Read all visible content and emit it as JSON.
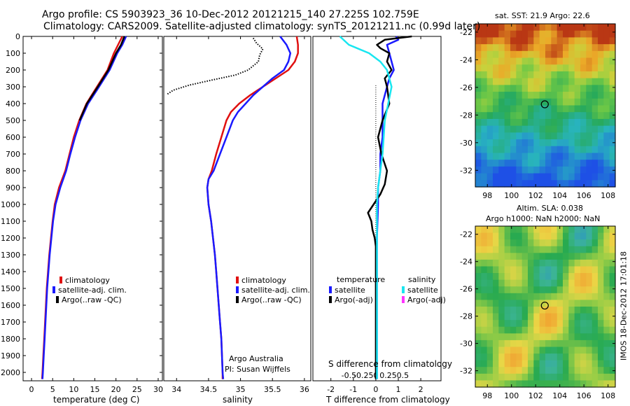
{
  "header": {
    "line1": "Argo profile: CS 5903923_36 10-Dec-2012 20121215_140 27.225S 102.759E",
    "line2": "Climatology: CARS2009. Satellite-adjusted climatology: synTS_20121211.nc (0.99d later)"
  },
  "colors": {
    "red": "#e01010",
    "blue": "#1a1aff",
    "black": "#000000",
    "cyan": "#19e6f0",
    "magenta": "#ff33ff"
  },
  "chart_data": [
    {
      "type": "line",
      "id": "temperature",
      "xlabel": "temperature (deg C)",
      "xlim": [
        -2,
        31
      ],
      "ylim": [
        2050,
        0
      ],
      "xticks": [
        0,
        5,
        10,
        15,
        20,
        25,
        30
      ],
      "yticks": [
        0,
        100,
        200,
        300,
        400,
        500,
        600,
        700,
        800,
        900,
        1000,
        1100,
        1200,
        1300,
        1400,
        1500,
        1600,
        1700,
        1800,
        1900,
        2000
      ],
      "legend": [
        "climatology",
        "satellite-adj. clim.",
        "Argo(..raw -QC)"
      ],
      "series": [
        {
          "name": "climatology",
          "color": "#e01010",
          "style": "solid",
          "points": [
            [
              21.5,
              0
            ],
            [
              20.5,
              50
            ],
            [
              19.5,
              100
            ],
            [
              18,
              200
            ],
            [
              15.5,
              300
            ],
            [
              13,
              400
            ],
            [
              11.3,
              500
            ],
            [
              10,
              600
            ],
            [
              9,
              700
            ],
            [
              8,
              800
            ],
            [
              6.5,
              900
            ],
            [
              5.5,
              1000
            ],
            [
              5,
              1100
            ],
            [
              4.6,
              1200
            ],
            [
              4.2,
              1300
            ],
            [
              3.9,
              1400
            ],
            [
              3.6,
              1500
            ],
            [
              3.4,
              1600
            ],
            [
              3.2,
              1700
            ],
            [
              3,
              1800
            ],
            [
              2.8,
              1900
            ],
            [
              2.6,
              2000
            ],
            [
              2.5,
              2040
            ]
          ]
        },
        {
          "name": "satellite-adj. clim.",
          "color": "#1a1aff",
          "style": "solid",
          "points": [
            [
              22.4,
              0
            ],
            [
              21.5,
              50
            ],
            [
              20.3,
              100
            ],
            [
              18.5,
              200
            ],
            [
              16,
              300
            ],
            [
              13.4,
              400
            ],
            [
              11.6,
              500
            ],
            [
              10.3,
              600
            ],
            [
              9.2,
              700
            ],
            [
              8.2,
              800
            ],
            [
              6.8,
              900
            ],
            [
              5.7,
              1000
            ],
            [
              5.1,
              1100
            ],
            [
              4.7,
              1200
            ],
            [
              4.3,
              1300
            ],
            [
              4,
              1400
            ],
            [
              3.7,
              1500
            ],
            [
              3.5,
              1600
            ],
            [
              3.3,
              1700
            ],
            [
              3.1,
              1800
            ],
            [
              2.9,
              1900
            ],
            [
              2.7,
              2000
            ],
            [
              2.6,
              2040
            ]
          ]
        },
        {
          "name": "Argo(..raw -QC)",
          "color": "#000000",
          "style": "solid",
          "points": [
            [
              22,
              0
            ],
            [
              21.2,
              50
            ],
            [
              20,
              100
            ],
            [
              18.2,
              200
            ],
            [
              15.7,
              300
            ],
            [
              13.1,
              400
            ],
            [
              11.4,
              500
            ]
          ]
        }
      ]
    },
    {
      "type": "line",
      "id": "salinity",
      "xlabel": "salinity",
      "xlim": [
        33.8,
        36.1
      ],
      "ylim": [
        2050,
        0
      ],
      "xticks": [
        34,
        34.5,
        35,
        35.5,
        36
      ],
      "legend": [
        "climatology",
        "satellite-adj. clim.",
        "Argo(..raw -QC)"
      ],
      "annotations": [
        "Argo Australia",
        "PI: Susan Wijffels"
      ],
      "series": [
        {
          "name": "climatology",
          "color": "#e01010",
          "style": "solid",
          "points": [
            [
              35.88,
              0
            ],
            [
              35.9,
              50
            ],
            [
              35.9,
              100
            ],
            [
              35.85,
              150
            ],
            [
              35.75,
              200
            ],
            [
              35.55,
              250
            ],
            [
              35.35,
              300
            ],
            [
              35.15,
              350
            ],
            [
              34.98,
              400
            ],
            [
              34.85,
              450
            ],
            [
              34.78,
              500
            ],
            [
              34.7,
              600
            ],
            [
              34.62,
              700
            ],
            [
              34.55,
              800
            ],
            [
              34.5,
              850
            ],
            [
              34.48,
              900
            ],
            [
              34.5,
              1000
            ],
            [
              34.54,
              1100
            ],
            [
              34.57,
              1200
            ],
            [
              34.6,
              1300
            ],
            [
              34.62,
              1400
            ],
            [
              34.64,
              1500
            ],
            [
              34.66,
              1600
            ],
            [
              34.68,
              1700
            ],
            [
              34.7,
              1800
            ],
            [
              34.71,
              1900
            ],
            [
              34.72,
              2000
            ],
            [
              34.72,
              2040
            ]
          ]
        },
        {
          "name": "satellite-adj. clim.",
          "color": "#1a1aff",
          "style": "solid",
          "points": [
            [
              35.62,
              0
            ],
            [
              35.72,
              50
            ],
            [
              35.78,
              100
            ],
            [
              35.75,
              150
            ],
            [
              35.68,
              200
            ],
            [
              35.5,
              250
            ],
            [
              35.35,
              300
            ],
            [
              35.2,
              350
            ],
            [
              35.08,
              400
            ],
            [
              34.96,
              450
            ],
            [
              34.88,
              500
            ],
            [
              34.78,
              600
            ],
            [
              34.68,
              700
            ],
            [
              34.58,
              800
            ],
            [
              34.5,
              850
            ],
            [
              34.48,
              900
            ],
            [
              34.5,
              1000
            ],
            [
              34.54,
              1100
            ],
            [
              34.57,
              1200
            ],
            [
              34.6,
              1300
            ],
            [
              34.62,
              1400
            ],
            [
              34.64,
              1500
            ],
            [
              34.66,
              1600
            ],
            [
              34.68,
              1700
            ],
            [
              34.7,
              1800
            ],
            [
              34.71,
              1900
            ],
            [
              34.72,
              2000
            ],
            [
              34.73,
              2040
            ]
          ]
        },
        {
          "name": "Argo(..raw -QC)",
          "color": "#000000",
          "style": "dotted",
          "points": [
            [
              35.2,
              10
            ],
            [
              35.25,
              40
            ],
            [
              35.35,
              75
            ],
            [
              35.3,
              110
            ],
            [
              35.28,
              150
            ],
            [
              35.12,
              200
            ],
            [
              34.92,
              230
            ],
            [
              34.55,
              260
            ],
            [
              34.2,
              290
            ],
            [
              33.95,
              320
            ],
            [
              33.85,
              345
            ]
          ]
        }
      ]
    },
    {
      "type": "line",
      "id": "difference",
      "xlabel": "T difference from climatology",
      "xlabel2": "S difference from climatology",
      "xlim": [
        -2.8,
        2.9
      ],
      "ylim": [
        2050,
        0
      ],
      "xticks": [
        -2,
        -1,
        0,
        1,
        2
      ],
      "xticks2": [
        "-0.5",
        "-0.25",
        "0",
        "0.25",
        "0.5"
      ],
      "legend": [
        "temperature",
        "satellite",
        "Argo(-adj)",
        "salinity",
        "satellite",
        "Argo(-adj)"
      ],
      "series": [
        {
          "name": "T satellite",
          "color": "#1a1aff",
          "style": "solid",
          "points": [
            [
              0.9,
              0
            ],
            [
              1,
              20
            ],
            [
              0.5,
              50
            ],
            [
              0.6,
              100
            ],
            [
              0.7,
              150
            ],
            [
              0.8,
              200
            ],
            [
              0.6,
              250
            ],
            [
              0.5,
              300
            ],
            [
              0.4,
              350
            ],
            [
              0.3,
              400
            ],
            [
              0.3,
              500
            ],
            [
              0.3,
              600
            ],
            [
              0.2,
              700
            ],
            [
              0.2,
              800
            ],
            [
              0.1,
              900
            ],
            [
              0.1,
              1000
            ],
            [
              0.05,
              1200
            ],
            [
              0.05,
              1400
            ],
            [
              0.05,
              1600
            ],
            [
              0.05,
              1800
            ],
            [
              0.05,
              2000
            ],
            [
              0.05,
              2040
            ]
          ]
        },
        {
          "name": "T Argo(-adj)",
          "color": "#000000",
          "style": "solid",
          "points": [
            [
              1.6,
              0
            ],
            [
              0.4,
              20
            ],
            [
              0.05,
              50
            ],
            [
              0.2,
              70
            ],
            [
              0.6,
              100
            ],
            [
              0.5,
              150
            ],
            [
              0.7,
              200
            ],
            [
              0.4,
              250
            ],
            [
              0.5,
              300
            ],
            [
              0.6,
              400
            ],
            [
              0.3,
              500
            ],
            [
              0.1,
              600
            ],
            [
              0.25,
              700
            ],
            [
              0.5,
              800
            ],
            [
              0.4,
              880
            ],
            [
              0.2,
              940
            ],
            [
              -0.1,
              1000
            ],
            [
              -0.35,
              1050
            ],
            [
              -0.2,
              1100
            ],
            [
              -0.15,
              1150
            ],
            [
              -0.05,
              1200
            ],
            [
              0,
              1250
            ],
            [
              0,
              1300
            ],
            [
              0,
              1400
            ],
            [
              0,
              1500
            ],
            [
              0,
              1600
            ],
            [
              0,
              1700
            ],
            [
              0,
              1800
            ],
            [
              0,
              1900
            ],
            [
              0,
              2000
            ],
            [
              0,
              2040
            ]
          ]
        },
        {
          "name": "S satellite",
          "color": "#19e6f0",
          "style": "solid",
          "points": [
            [
              -1.6,
              0
            ],
            [
              -1.2,
              50
            ],
            [
              -0.3,
              100
            ],
            [
              0.2,
              150
            ],
            [
              0.5,
              200
            ],
            [
              0.7,
              300
            ],
            [
              0.55,
              400
            ],
            [
              0.4,
              500
            ],
            [
              0.35,
              600
            ],
            [
              0.3,
              700
            ],
            [
              0.2,
              800
            ],
            [
              0.1,
              900
            ],
            [
              0.05,
              1000
            ],
            [
              0.05,
              1100
            ],
            [
              0.05,
              1200
            ],
            [
              0.05,
              1300
            ],
            [
              0.05,
              1400
            ],
            [
              0.05,
              1500
            ],
            [
              0.05,
              1600
            ],
            [
              0.05,
              1700
            ],
            [
              0.05,
              1800
            ],
            [
              0.05,
              1900
            ],
            [
              0.05,
              2000
            ],
            [
              0.05,
              2040
            ]
          ]
        },
        {
          "name": "S Argo(-adj)",
          "color": "#ff33ff",
          "style": "solid",
          "points": []
        }
      ]
    }
  ],
  "maps": [
    {
      "id": "sst-map",
      "title": "sat. SST: 21.9 Argo: 22.6",
      "xticks": [
        "98",
        "100",
        "102",
        "104",
        "106",
        "108"
      ],
      "yticks": [
        "-22",
        "-24",
        "-26",
        "-28",
        "-30",
        "-32"
      ],
      "marker": [
        102.759,
        -27.225
      ],
      "palette": "sst"
    },
    {
      "id": "sla-map",
      "title": "Altim. SLA: 0.038",
      "subtitle": "Argo h1000: NaN h2000: NaN",
      "xticks": [
        "98",
        "100",
        "102",
        "104",
        "106",
        "108"
      ],
      "yticks": [
        "-22",
        "-24",
        "-26",
        "-28",
        "-30",
        "-32"
      ],
      "marker": [
        102.759,
        -27.225
      ],
      "palette": "sla"
    }
  ],
  "side_stamp": "IMOS 18-Dec-2012 17:01:18"
}
